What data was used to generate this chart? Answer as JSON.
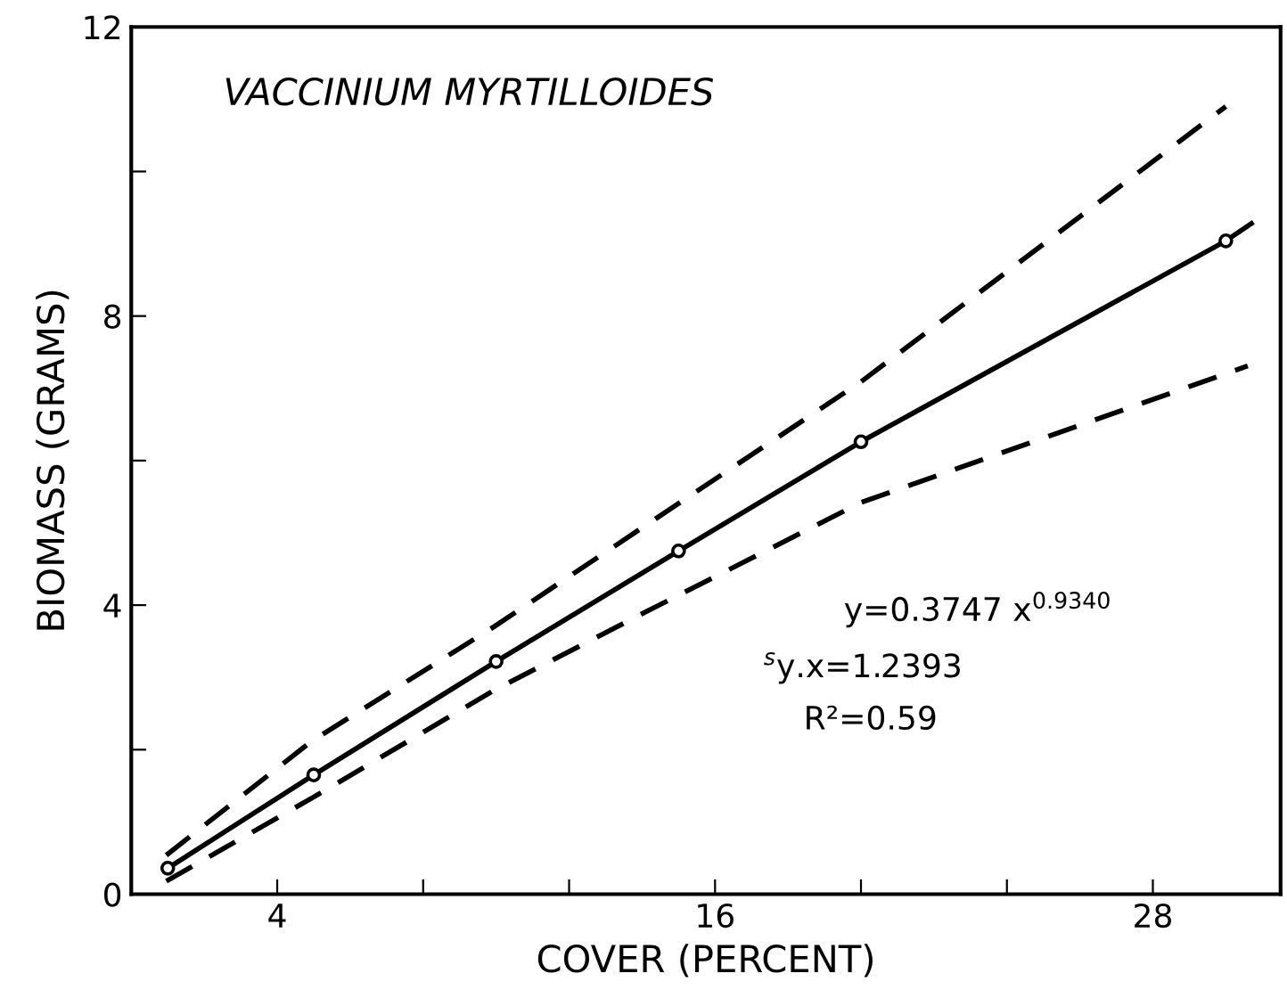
{
  "chart_data": {
    "type": "line",
    "xlabel": "COVER (PERCENT)",
    "ylabel": "BIOMASS (GRAMS)",
    "xlim": [
      0,
      31.5
    ],
    "xticks": [
      {
        "value": 4,
        "label": "4"
      },
      {
        "value": 8,
        "label": null
      },
      {
        "value": 12,
        "label": null
      },
      {
        "value": 16,
        "label": "16"
      },
      {
        "value": 20,
        "label": null
      },
      {
        "value": 24,
        "label": null
      },
      {
        "value": 28,
        "label": "28"
      }
    ],
    "ylim": [
      0,
      12
    ],
    "yticks": [
      {
        "value": 0,
        "label": "0"
      },
      {
        "value": 2,
        "label": null
      },
      {
        "value": 4,
        "label": "4"
      },
      {
        "value": 6,
        "label": null
      },
      {
        "value": 8,
        "label": "8"
      },
      {
        "value": 10,
        "label": null
      },
      {
        "value": 12,
        "label": "12"
      }
    ],
    "grid": false,
    "legend": false,
    "series": [
      {
        "color": "#000000",
        "line_style": "dashed",
        "x": [
          0.96,
          4.95,
          9.94,
          14.0,
          20.0,
          30.0
        ],
        "values": [
          0.54,
          2.12,
          3.7,
          5.07,
          7.09,
          10.9
        ]
      },
      {
        "color": "#000000",
        "line_style": "solid",
        "x": [
          1,
          5,
          10,
          15,
          20,
          30,
          30.7
        ],
        "values": [
          0.36,
          1.65,
          3.22,
          4.75,
          6.26,
          9.04,
          9.28
        ]
      },
      {
        "color": "#000000",
        "line_style": "dashed",
        "x": [
          0.96,
          4.95,
          9.94,
          14.0,
          20.0,
          30.6
        ],
        "values": [
          0.18,
          1.33,
          2.82,
          3.88,
          5.42,
          7.31
        ]
      },
      {
        "type": "scatter",
        "color": "#000000",
        "marker": "circle",
        "x": [
          1,
          5,
          10,
          15,
          20,
          30
        ],
        "values": [
          0.36,
          1.65,
          3.22,
          4.75,
          6.26,
          9.04
        ]
      }
    ],
    "annotations": [
      "VACCINIUM MYRTILLOIDES",
      "y=0.3747 x$^{0.9340}$",
      "$^{s}$y.x=1.2393",
      "R²=0.59"
    ]
  }
}
